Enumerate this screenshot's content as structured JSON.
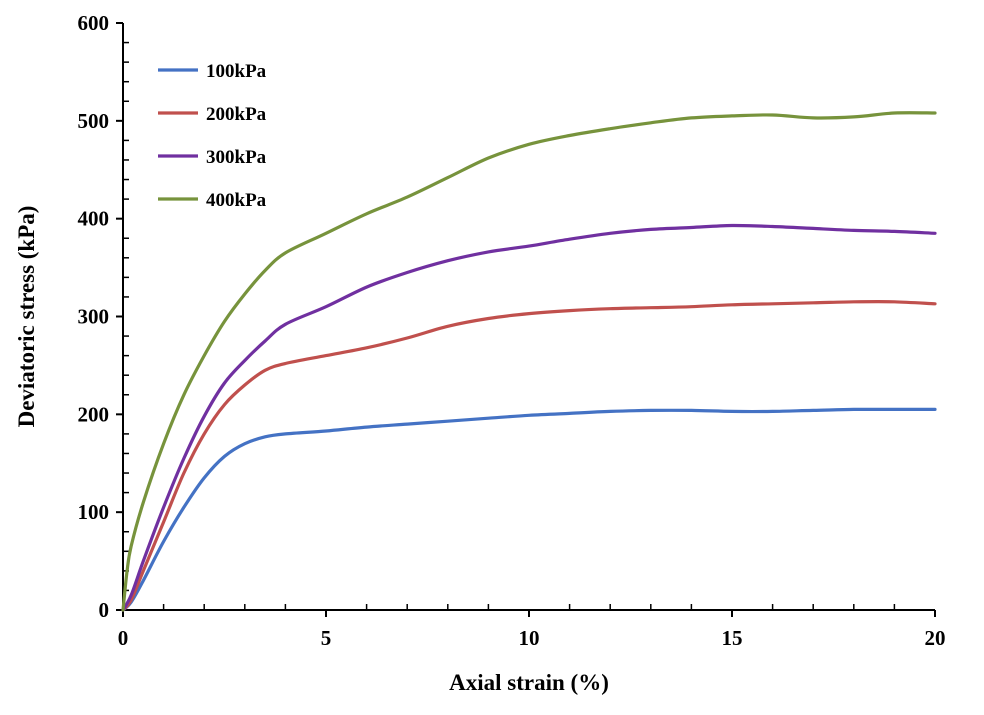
{
  "chart_data": {
    "type": "line",
    "title": "",
    "xlabel": "Axial strain (%)",
    "ylabel": "Deviatoric stress (kPa)",
    "xlim": [
      0,
      20
    ],
    "ylim": [
      0,
      600
    ],
    "xticks": [
      0,
      5,
      10,
      15,
      20
    ],
    "yticks": [
      0,
      100,
      200,
      300,
      400,
      500,
      600
    ],
    "grid": false,
    "legend_position": "top-left",
    "series": [
      {
        "name": "100kPa",
        "color": "#4472C4",
        "points": [
          [
            0,
            0
          ],
          [
            0.2,
            8
          ],
          [
            0.5,
            30
          ],
          [
            1,
            70
          ],
          [
            1.5,
            105
          ],
          [
            2,
            135
          ],
          [
            2.5,
            157
          ],
          [
            3,
            170
          ],
          [
            3.5,
            177
          ],
          [
            4,
            180
          ],
          [
            5,
            183
          ],
          [
            6,
            187
          ],
          [
            7,
            190
          ],
          [
            8,
            193
          ],
          [
            9,
            196
          ],
          [
            10,
            199
          ],
          [
            11,
            201
          ],
          [
            12,
            203
          ],
          [
            13,
            204
          ],
          [
            14,
            204
          ],
          [
            15,
            203
          ],
          [
            16,
            203
          ],
          [
            17,
            204
          ],
          [
            18,
            205
          ],
          [
            19,
            205
          ],
          [
            20,
            205
          ]
        ]
      },
      {
        "name": "200kPa",
        "color": "#C0504D",
        "points": [
          [
            0,
            0
          ],
          [
            0.2,
            10
          ],
          [
            0.5,
            40
          ],
          [
            1,
            90
          ],
          [
            1.5,
            140
          ],
          [
            2,
            180
          ],
          [
            2.5,
            210
          ],
          [
            3,
            230
          ],
          [
            3.5,
            245
          ],
          [
            4,
            252
          ],
          [
            5,
            260
          ],
          [
            6,
            268
          ],
          [
            7,
            278
          ],
          [
            8,
            290
          ],
          [
            9,
            298
          ],
          [
            10,
            303
          ],
          [
            11,
            306
          ],
          [
            12,
            308
          ],
          [
            13,
            309
          ],
          [
            14,
            310
          ],
          [
            15,
            312
          ],
          [
            16,
            313
          ],
          [
            17,
            314
          ],
          [
            18,
            315
          ],
          [
            19,
            315
          ],
          [
            20,
            313
          ]
        ]
      },
      {
        "name": "300kPa",
        "color": "#7030A0",
        "points": [
          [
            0,
            0
          ],
          [
            0.2,
            15
          ],
          [
            0.5,
            50
          ],
          [
            1,
            105
          ],
          [
            1.5,
            155
          ],
          [
            2,
            198
          ],
          [
            2.5,
            232
          ],
          [
            3,
            255
          ],
          [
            3.5,
            275
          ],
          [
            4,
            292
          ],
          [
            5,
            310
          ],
          [
            6,
            330
          ],
          [
            7,
            345
          ],
          [
            8,
            357
          ],
          [
            9,
            366
          ],
          [
            10,
            372
          ],
          [
            11,
            379
          ],
          [
            12,
            385
          ],
          [
            13,
            389
          ],
          [
            14,
            391
          ],
          [
            15,
            393
          ],
          [
            16,
            392
          ],
          [
            17,
            390
          ],
          [
            18,
            388
          ],
          [
            19,
            387
          ],
          [
            20,
            385
          ]
        ]
      },
      {
        "name": "400kPa",
        "color": "#77933C",
        "points": [
          [
            0,
            0
          ],
          [
            0.1,
            40
          ],
          [
            0.2,
            65
          ],
          [
            0.5,
            110
          ],
          [
            1,
            170
          ],
          [
            1.5,
            220
          ],
          [
            2,
            260
          ],
          [
            2.5,
            295
          ],
          [
            3,
            323
          ],
          [
            3.5,
            347
          ],
          [
            4,
            365
          ],
          [
            5,
            385
          ],
          [
            6,
            405
          ],
          [
            7,
            422
          ],
          [
            8,
            442
          ],
          [
            9,
            462
          ],
          [
            10,
            476
          ],
          [
            11,
            485
          ],
          [
            12,
            492
          ],
          [
            13,
            498
          ],
          [
            14,
            503
          ],
          [
            15,
            505
          ],
          [
            16,
            506
          ],
          [
            17,
            503
          ],
          [
            18,
            504
          ],
          [
            19,
            508
          ],
          [
            20,
            508
          ]
        ]
      }
    ]
  }
}
